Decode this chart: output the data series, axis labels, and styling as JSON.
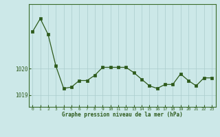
{
  "hours": [
    0,
    1,
    2,
    3,
    4,
    5,
    6,
    7,
    8,
    9,
    10,
    11,
    12,
    13,
    14,
    15,
    16,
    17,
    18,
    19,
    20,
    21,
    22,
    23
  ],
  "pressure": [
    1021.4,
    1021.9,
    1021.3,
    1020.1,
    1019.25,
    1019.3,
    1019.55,
    1019.55,
    1019.75,
    1020.05,
    1020.05,
    1020.05,
    1020.05,
    1019.85,
    1019.6,
    1019.35,
    1019.25,
    1019.4,
    1019.4,
    1019.8,
    1019.55,
    1019.35,
    1019.65,
    1019.65
  ],
  "line_color": "#2d5a1b",
  "marker_color": "#2d5a1b",
  "bg_color": "#cce8e8",
  "grid_color": "#aacccc",
  "tick_color": "#2d5a1b",
  "xlabel": "Graphe pression niveau de la mer (hPa)",
  "yticks": [
    1019,
    1020
  ],
  "ylim": [
    1018.55,
    1022.45
  ],
  "xlim": [
    -0.5,
    23.5
  ],
  "border_color": "#3a6a2a"
}
